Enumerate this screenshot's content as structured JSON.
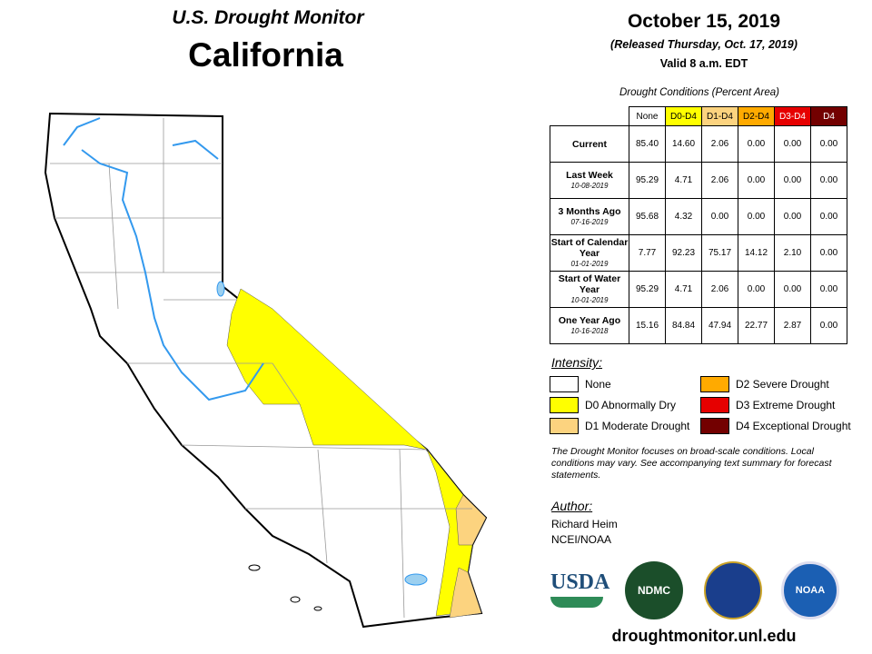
{
  "header": {
    "title": "U.S. Drought Monitor",
    "state": "California",
    "date": "October 15, 2019",
    "released": "(Released Thursday, Oct. 17, 2019)",
    "valid": "Valid 8 a.m. EDT"
  },
  "table": {
    "caption": "Drought Conditions (Percent Area)",
    "columns": [
      {
        "label": "None",
        "color": "#ffffff",
        "text": "#000"
      },
      {
        "label": "D0-D4",
        "color": "#ffff00",
        "text": "#000"
      },
      {
        "label": "D1-D4",
        "color": "#fcd37f",
        "text": "#000"
      },
      {
        "label": "D2-D4",
        "color": "#ffaa00",
        "text": "#000"
      },
      {
        "label": "D3-D4",
        "color": "#e60000",
        "text": "#fff"
      },
      {
        "label": "D4",
        "color": "#730000",
        "text": "#fff"
      }
    ],
    "rows": [
      {
        "label": "Current",
        "values": [
          "85.40",
          "14.60",
          "2.06",
          "0.00",
          "0.00",
          "0.00"
        ]
      },
      {
        "label": "Last Week",
        "date": "10-08-2019",
        "values": [
          "95.29",
          "4.71",
          "2.06",
          "0.00",
          "0.00",
          "0.00"
        ]
      },
      {
        "label": "3 Months Ago",
        "date": "07-16-2019",
        "values": [
          "95.68",
          "4.32",
          "0.00",
          "0.00",
          "0.00",
          "0.00"
        ]
      },
      {
        "label": "Start of Calendar Year",
        "date": "01-01-2019",
        "values": [
          "7.77",
          "92.23",
          "75.17",
          "14.12",
          "2.10",
          "0.00"
        ]
      },
      {
        "label": "Start of Water Year",
        "date": "10-01-2019",
        "values": [
          "95.29",
          "4.71",
          "2.06",
          "0.00",
          "0.00",
          "0.00"
        ]
      },
      {
        "label": "One Year Ago",
        "date": "10-16-2018",
        "values": [
          "15.16",
          "84.84",
          "47.94",
          "22.77",
          "2.87",
          "0.00"
        ]
      }
    ]
  },
  "legend": {
    "title": "Intensity:",
    "items": [
      {
        "label": "None",
        "color": "#ffffff"
      },
      {
        "label": "D2 Severe Drought",
        "color": "#ffaa00"
      },
      {
        "label": "D0 Abnormally Dry",
        "color": "#ffff00"
      },
      {
        "label": "D3 Extreme Drought",
        "color": "#e60000"
      },
      {
        "label": "D1 Moderate Drought",
        "color": "#fcd37f"
      },
      {
        "label": "D4 Exceptional Drought",
        "color": "#730000"
      }
    ]
  },
  "note": "The Drought Monitor focuses on broad-scale conditions. Local conditions may vary. See accompanying text summary for forecast statements.",
  "author": {
    "title": "Author:",
    "name": "Richard Heim",
    "org": "NCEI/NOAA"
  },
  "logos": [
    "USDA",
    "NDMC",
    "NOAA"
  ],
  "url": "droughtmonitor.unl.edu"
}
